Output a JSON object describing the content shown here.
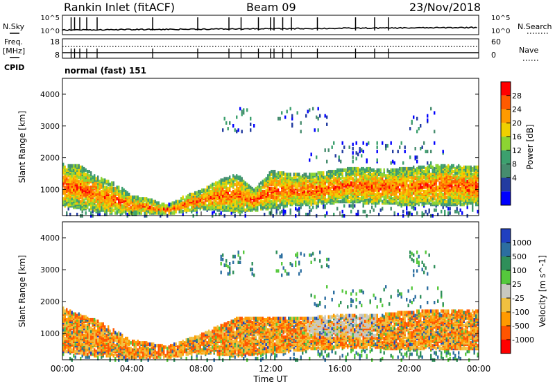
{
  "header": {
    "station": "Rankin Inlet (fitACF)",
    "beam": "Beam 09",
    "date": "23/Nov/2018"
  },
  "strips": {
    "nsky": {
      "label": "N.Sky",
      "ticks_left": [
        "10^5",
        "10^0"
      ],
      "right_label": "N.Search",
      "ticks_right": [
        "10^5",
        "10^0"
      ]
    },
    "freq": {
      "label_line1": "Freq.",
      "label_line2": "[MHz]",
      "ticks_left": [
        "18",
        "8"
      ],
      "right_label": "Nave",
      "ticks_right": [
        "60",
        "0"
      ]
    },
    "cpid": {
      "label": "CPID",
      "value": "normal (fast) 151"
    }
  },
  "power_panel": {
    "ylabel": "Slant Range [km]",
    "colorbar_label": "Power [dB]",
    "colorbar_ticks": [
      "28",
      "24",
      "20",
      "16",
      "12",
      "8",
      "4"
    ],
    "colors": [
      "#ff0000",
      "#ff5a00",
      "#ff9a00",
      "#f0d000",
      "#8cd432",
      "#3ca06e",
      "#468c6e",
      "#233ca0",
      "#0000ff"
    ]
  },
  "velocity_panel": {
    "ylabel": "Slant Range [km]",
    "colorbar_label": "Velocity [m s^-1]",
    "colorbar_ticks": [
      "1000",
      "500",
      "100",
      "25",
      "-25",
      "-100",
      "-500",
      "-1000"
    ],
    "colors": [
      "#2040c0",
      "#2c6ea0",
      "#2f8f5a",
      "#55c83c",
      "#c8c8c0",
      "#f0c040",
      "#ff9a00",
      "#ff5500",
      "#ff0000"
    ]
  },
  "x_axis": {
    "label": "Time UT",
    "ticks": [
      "00:00",
      "04:00",
      "08:00",
      "12:00",
      "16:00",
      "20:00",
      "00:00"
    ]
  },
  "chart_data": [
    {
      "type": "heatmap",
      "title": "Power",
      "x_range_hours": [
        0,
        24
      ],
      "ylim": [
        180,
        4500
      ],
      "yticks": [
        1000,
        2000,
        3000,
        4000
      ],
      "band_range_km": [
        {
          "x": 0,
          "lo": 500,
          "hi": 1800
        },
        {
          "x": 1,
          "lo": 400,
          "hi": 1750
        },
        {
          "x": 2,
          "lo": 300,
          "hi": 1400
        },
        {
          "x": 3,
          "lo": 250,
          "hi": 1200
        },
        {
          "x": 4,
          "lo": 250,
          "hi": 800
        },
        {
          "x": 5,
          "lo": 250,
          "hi": 700
        },
        {
          "x": 6,
          "lo": 250,
          "hi": 500
        },
        {
          "x": 7,
          "lo": 300,
          "hi": 800
        },
        {
          "x": 8,
          "lo": 400,
          "hi": 1000
        },
        {
          "x": 9,
          "lo": 350,
          "hi": 1300
        },
        {
          "x": 10,
          "lo": 300,
          "hi": 1500
        },
        {
          "x": 11,
          "lo": 350,
          "hi": 1000
        },
        {
          "x": 12,
          "lo": 400,
          "hi": 1600
        },
        {
          "x": 13,
          "lo": 500,
          "hi": 1500
        },
        {
          "x": 14,
          "lo": 500,
          "hi": 1500
        },
        {
          "x": 15,
          "lo": 550,
          "hi": 1550
        },
        {
          "x": 16,
          "lo": 600,
          "hi": 1650
        },
        {
          "x": 17,
          "lo": 600,
          "hi": 1700
        },
        {
          "x": 18,
          "lo": 550,
          "hi": 1650
        },
        {
          "x": 19,
          "lo": 550,
          "hi": 1650
        },
        {
          "x": 20,
          "lo": 500,
          "hi": 1700
        },
        {
          "x": 21,
          "lo": 550,
          "hi": 1750
        },
        {
          "x": 22,
          "lo": 500,
          "hi": 1800
        },
        {
          "x": 23,
          "lo": 500,
          "hi": 1750
        },
        {
          "x": 24,
          "lo": 500,
          "hi": 1750
        }
      ]
    },
    {
      "type": "heatmap",
      "title": "Velocity",
      "x_range_hours": [
        0,
        24
      ],
      "ylim": [
        180,
        4500
      ],
      "yticks": [
        1000,
        2000,
        3000,
        4000
      ],
      "band_range_km": [
        {
          "x": 0,
          "lo": 450,
          "hi": 1800
        },
        {
          "x": 2,
          "lo": 300,
          "hi": 1400
        },
        {
          "x": 4,
          "lo": 250,
          "hi": 800
        },
        {
          "x": 6,
          "lo": 250,
          "hi": 600
        },
        {
          "x": 8,
          "lo": 400,
          "hi": 1000
        },
        {
          "x": 10,
          "lo": 300,
          "hi": 1500
        },
        {
          "x": 12,
          "lo": 400,
          "hi": 1500
        },
        {
          "x": 14,
          "lo": 500,
          "hi": 1500
        },
        {
          "x": 16,
          "lo": 550,
          "hi": 1600
        },
        {
          "x": 18,
          "lo": 550,
          "hi": 1600
        },
        {
          "x": 20,
          "lo": 500,
          "hi": 1700
        },
        {
          "x": 22,
          "lo": 500,
          "hi": 1750
        },
        {
          "x": 24,
          "lo": 500,
          "hi": 1750
        }
      ]
    }
  ]
}
